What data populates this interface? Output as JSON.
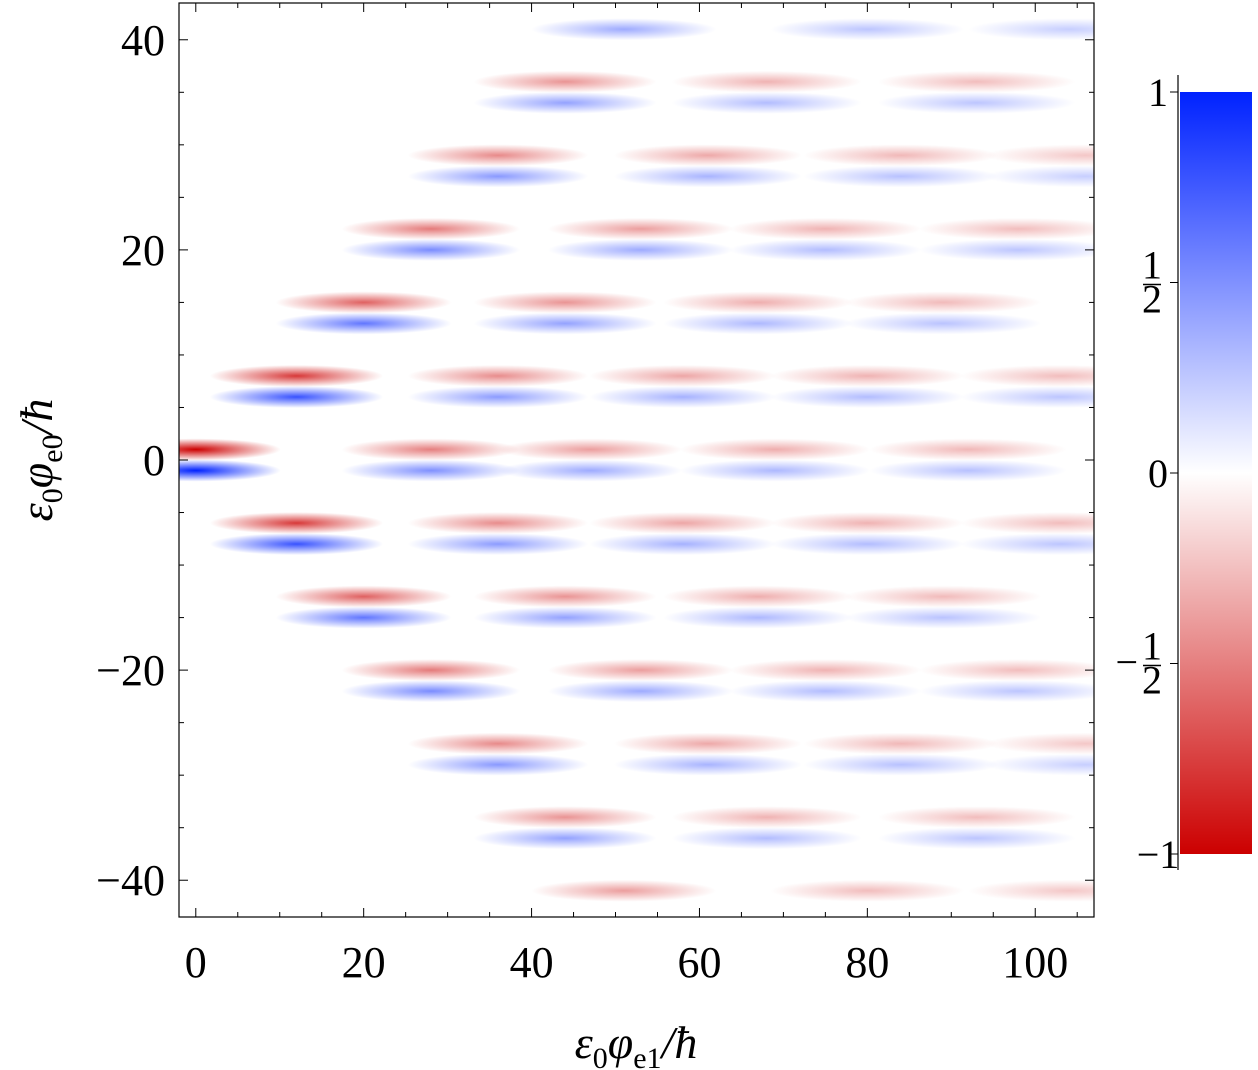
{
  "chart_data": {
    "type": "heatmap",
    "title": "",
    "xlabel": "ε0φe1/ħ",
    "ylabel": "ε0φe0/ħ",
    "xlabel_parts": {
      "epsilon": "ε",
      "sub0": "0",
      "phi": "φ",
      "sub": "e1",
      "tail": "/ħ"
    },
    "ylabel_parts": {
      "epsilon": "ε",
      "sub0": "0",
      "phi": "φ",
      "sub": "e0",
      "tail": "/ħ"
    },
    "xlim": [
      -2,
      107
    ],
    "ylim": [
      -43.5,
      43.5
    ],
    "x_ticks": [
      {
        "value": 0,
        "label": "0"
      },
      {
        "value": 20,
        "label": "20"
      },
      {
        "value": 40,
        "label": "40"
      },
      {
        "value": 60,
        "label": "60"
      },
      {
        "value": 80,
        "label": "80"
      },
      {
        "value": 100,
        "label": "100"
      }
    ],
    "y_ticks": [
      {
        "value": 40,
        "label": "40"
      },
      {
        "value": 20,
        "label": "20"
      },
      {
        "value": 0,
        "label": "0"
      },
      {
        "value": -20,
        "label": "−20"
      },
      {
        "value": -40,
        "label": "−40"
      }
    ],
    "colorbar": {
      "range": [
        -1,
        1
      ],
      "colors": {
        "positive": "#0022ff",
        "zero": "#ffffff",
        "negative": "#cc0000"
      },
      "ticks": [
        {
          "value": 1,
          "text": "1",
          "fraction": false
        },
        {
          "value": 0.5,
          "num": "1",
          "den": "2",
          "sign": "",
          "fraction": true
        },
        {
          "value": 0,
          "text": "0",
          "fraction": false
        },
        {
          "value": -0.5,
          "num": "1",
          "den": "2",
          "sign": "−",
          "fraction": true
        },
        {
          "value": -1,
          "text": "−1",
          "fraction": false
        }
      ]
    },
    "grid": false,
    "stripe_pairs": [
      {
        "y_neg": 1,
        "y_pos": -1,
        "lobes": [
          {
            "x": 0,
            "amp": 1.0
          },
          {
            "x": 28,
            "amp": 0.5
          },
          {
            "x": 47,
            "amp": 0.38
          },
          {
            "x": 69,
            "amp": 0.32
          },
          {
            "x": 92,
            "amp": 0.28
          }
        ]
      },
      {
        "y_neg": 8,
        "y_pos": 6,
        "lobes": [
          {
            "x": 12,
            "amp": 0.78
          },
          {
            "x": 36,
            "amp": 0.45
          },
          {
            "x": 58,
            "amp": 0.35
          },
          {
            "x": 80,
            "amp": 0.3
          },
          {
            "x": 103,
            "amp": 0.26
          }
        ]
      },
      {
        "y_neg": -6,
        "y_pos": -8,
        "lobes": [
          {
            "x": 12,
            "amp": 0.78
          },
          {
            "x": 36,
            "amp": 0.45
          },
          {
            "x": 58,
            "amp": 0.35
          },
          {
            "x": 80,
            "amp": 0.3
          },
          {
            "x": 103,
            "amp": 0.26
          }
        ]
      },
      {
        "y_neg": 15,
        "y_pos": 13,
        "lobes": [
          {
            "x": 20,
            "amp": 0.62
          },
          {
            "x": 44,
            "amp": 0.42
          },
          {
            "x": 67,
            "amp": 0.32
          },
          {
            "x": 89,
            "amp": 0.27
          }
        ]
      },
      {
        "y_neg": -13,
        "y_pos": -15,
        "lobes": [
          {
            "x": 20,
            "amp": 0.62
          },
          {
            "x": 44,
            "amp": 0.42
          },
          {
            "x": 67,
            "amp": 0.32
          },
          {
            "x": 89,
            "amp": 0.27
          }
        ]
      },
      {
        "y_neg": 22,
        "y_pos": 20,
        "lobes": [
          {
            "x": 28,
            "amp": 0.52
          },
          {
            "x": 53,
            "amp": 0.38
          },
          {
            "x": 75,
            "amp": 0.3
          },
          {
            "x": 98,
            "amp": 0.26
          }
        ]
      },
      {
        "y_neg": -20,
        "y_pos": -22,
        "lobes": [
          {
            "x": 28,
            "amp": 0.52
          },
          {
            "x": 53,
            "amp": 0.38
          },
          {
            "x": 75,
            "amp": 0.3
          },
          {
            "x": 98,
            "amp": 0.26
          }
        ]
      },
      {
        "y_neg": 29,
        "y_pos": 27,
        "lobes": [
          {
            "x": 36,
            "amp": 0.46
          },
          {
            "x": 61,
            "amp": 0.34
          },
          {
            "x": 84,
            "amp": 0.28
          },
          {
            "x": 106,
            "amp": 0.22
          }
        ]
      },
      {
        "y_neg": -27,
        "y_pos": -29,
        "lobes": [
          {
            "x": 36,
            "amp": 0.46
          },
          {
            "x": 61,
            "amp": 0.34
          },
          {
            "x": 84,
            "amp": 0.28
          },
          {
            "x": 106,
            "amp": 0.22
          }
        ]
      },
      {
        "y_neg": 36,
        "y_pos": 34,
        "lobes": [
          {
            "x": 44,
            "amp": 0.42
          },
          {
            "x": 68,
            "amp": 0.3
          },
          {
            "x": 93,
            "amp": 0.26
          }
        ]
      },
      {
        "y_neg": -34,
        "y_pos": -36,
        "lobes": [
          {
            "x": 44,
            "amp": 0.42
          },
          {
            "x": 68,
            "amp": 0.3
          },
          {
            "x": 93,
            "amp": 0.26
          }
        ]
      },
      {
        "y_neg": null,
        "y_pos": 41,
        "lobes": [
          {
            "x": 51,
            "amp": 0.38
          },
          {
            "x": 80,
            "amp": 0.26
          },
          {
            "x": 104,
            "amp": 0.22
          }
        ]
      },
      {
        "y_neg": -41,
        "y_pos": null,
        "lobes": [
          {
            "x": 51,
            "amp": 0.38
          },
          {
            "x": 80,
            "amp": 0.26
          },
          {
            "x": 104,
            "amp": 0.22
          }
        ]
      }
    ]
  }
}
